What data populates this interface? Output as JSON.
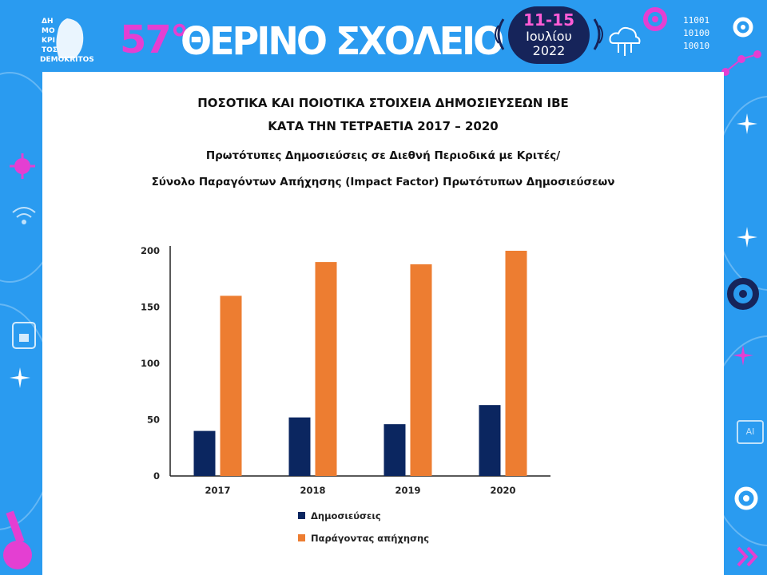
{
  "header": {
    "logo_text": "ΔΗΜΟΚΡΙΤΟΣ",
    "logo_caption": "DEMOKRITOS",
    "school_number": "57°",
    "school_title": "ΘΕΡΙΝΟ ΣΧΟΛΕΙΟ",
    "dates_days": "11-15",
    "dates_month": "Ιουλίου",
    "dates_year": "2022",
    "binary": [
      "11001",
      "10100",
      "10010"
    ],
    "icon_ai_label": "AI"
  },
  "titles": {
    "line1": "ΠΟΣΟΤΙΚΑ ΚΑΙ ΠΟΙΟΤΙΚΑ ΣΤΟΙΧΕΙΑ ΔΗΜΟΣΙΕΥΣΕΩΝ ΙΒΕ",
    "line2": "ΚΑΤΑ ΤΗΝ ΤΕΤΡΑΕΤΙΑ 2017 – 2020",
    "sub1": "Πρωτότυπες Δημοσιεύσεις σε Διεθνή Περιοδικά με Κριτές/",
    "sub2": "Σύνολο Παραγόντων Απήχησης (Impact Factor) Πρωτότυπων Δημοσιεύσεων"
  },
  "colors": {
    "frame": "#2a9bf0",
    "accent": "#e43fd2",
    "series1": "#0b2660",
    "series2": "#ed7d31"
  },
  "chart_data": {
    "type": "bar",
    "categories": [
      "2017",
      "2018",
      "2019",
      "2020"
    ],
    "series": [
      {
        "name": "Δημοσιεύσεις",
        "values": [
          40,
          52,
          46,
          63
        ]
      },
      {
        "name": "Παράγοντας απήχησης",
        "values": [
          160,
          190,
          188,
          200
        ]
      }
    ],
    "yticks": [
      0,
      50,
      100,
      150,
      200
    ],
    "ylim": [
      0,
      200
    ],
    "grid": false,
    "legend_placement": "bottom"
  }
}
